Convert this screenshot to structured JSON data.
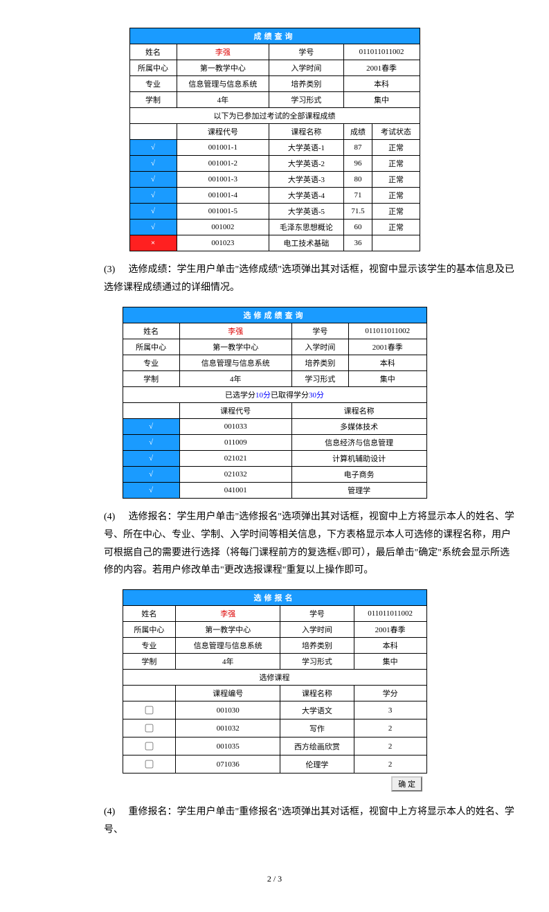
{
  "t1": {
    "title": "成绩查询",
    "info": [
      [
        "姓名",
        {
          "v": "李强",
          "red": true
        },
        "学号",
        "011011011002"
      ],
      [
        "所属中心",
        "第一教学中心",
        "入学时间",
        "2001春季"
      ],
      [
        "专业",
        "信息管理与信息系统",
        "培养类别",
        "本科"
      ],
      [
        "学制",
        "4年",
        "学习形式",
        "集中"
      ]
    ],
    "sub": "以下为已参加过考试的全部课程成绩",
    "cols": [
      "",
      "课程代号",
      "课程名称",
      "成绩",
      "考试状态"
    ],
    "rows": [
      {
        "m": "b",
        "code": "001001-1",
        "name": "大学英语-1",
        "score": "87",
        "stat": "正常"
      },
      {
        "m": "b",
        "code": "001001-2",
        "name": "大学英语-2",
        "score": "96",
        "stat": "正常"
      },
      {
        "m": "b",
        "code": "001001-3",
        "name": "大学英语-3",
        "score": "80",
        "stat": "正常"
      },
      {
        "m": "b",
        "code": "001001-4",
        "name": "大学英语-4",
        "score": "71",
        "stat": "正常"
      },
      {
        "m": "b",
        "code": "001001-5",
        "name": "大学英语-5",
        "score": "71.5",
        "stat": "正常"
      },
      {
        "m": "b",
        "code": "001002",
        "name": "毛泽东思想概论",
        "score": "60",
        "stat": "正常"
      },
      {
        "m": "r",
        "code": "001023",
        "name": "电工技术基础",
        "score": "36",
        "stat": ""
      }
    ]
  },
  "p3": {
    "num": "(3)",
    "title": "选修成绩：",
    "text": "学生用户单击\"选修成绩\"选项弹出其对话框，视窗中显示该学生的基本信息及已选修课程成绩通过的详细情况。"
  },
  "t2": {
    "title": "选修成绩查询",
    "info": [
      [
        "姓名",
        {
          "v": "李强",
          "red": true
        },
        "学号",
        "011011011002"
      ],
      [
        "所属中心",
        "第一教学中心",
        "入学时间",
        "2001春季"
      ],
      [
        "专业",
        "信息管理与信息系统",
        "培养类别",
        "本科"
      ],
      [
        "学制",
        "4年",
        "学习形式",
        "集中"
      ]
    ],
    "sub_pre": "已选学分",
    "sub_v1": "10分",
    "sub_mid": "已取得学分",
    "sub_v2": "30分",
    "cols": [
      "",
      "课程代号",
      "课程名称"
    ],
    "rows": [
      {
        "code": "001033",
        "name": "多媒体技术"
      },
      {
        "code": "011009",
        "name": "信息经济与信息管理"
      },
      {
        "code": "021021",
        "name": "计算机辅助设计"
      },
      {
        "code": "021032",
        "name": "电子商务"
      },
      {
        "code": "041001",
        "name": "管理学"
      }
    ]
  },
  "p4": {
    "num": "(4)",
    "title": "选修报名：",
    "text": "学生用户单击\"选修报名\"选项弹出其对话框，视窗中上方将显示本人的姓名、学号、所在中心、专业、学制、入学时间等相关信息，下方表格显示本人可选修的课程名称，用户可根据自己的需要进行选择（将每门课程前方的复选框√即可），最后单击\"确定\"系统会显示所选修的内容。若用户修改单击\"更改选报课程\"重复以上操作即可。"
  },
  "t3": {
    "title": "选修报名",
    "info": [
      [
        "姓名",
        {
          "v": "李强",
          "red": true
        },
        "学号",
        "011011011002"
      ],
      [
        "所属中心",
        "第一教学中心",
        "入学时间",
        "2001春季"
      ],
      [
        "专业",
        "信息管理与信息系统",
        "培养类别",
        "本科"
      ],
      [
        "学制",
        "4年",
        "学习形式",
        "集中"
      ]
    ],
    "sub": "选修课程",
    "cols": [
      "",
      "课程编号",
      "课程名称",
      "学分"
    ],
    "rows": [
      {
        "code": "001030",
        "name": "大学语文",
        "credit": "3"
      },
      {
        "code": "001032",
        "name": "写作",
        "credit": "2"
      },
      {
        "code": "001035",
        "name": "西方绘画欣赏",
        "credit": "2"
      },
      {
        "code": "071036",
        "name": "伦理学",
        "credit": "2"
      }
    ],
    "btn": "确 定"
  },
  "p5": {
    "num": "(4)",
    "title": "重修报名：",
    "text": "学生用户单击\"重修报名\"选项弹出其对话框，视窗中上方将显示本人的姓名、学号、"
  },
  "footer": "2 / 3"
}
